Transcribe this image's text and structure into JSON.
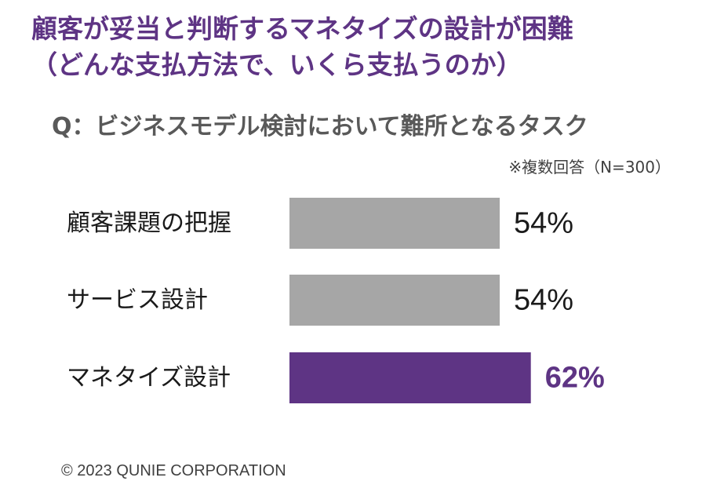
{
  "headline": {
    "line1": "顧客が妥当と判断するマネタイズの設計が困難",
    "line2": "（どんな支払方法で、いくら支払うのか）"
  },
  "question": "Q：ビジネスモデル検討において難所となるタスク",
  "note": "※複数回答（N=300）",
  "footer": "© 2023 QUNIE CORPORATION",
  "colors": {
    "accent": "#5e3484",
    "bar_default": "#a6a6a6",
    "bar_highlight": "#5e3484",
    "text_dark": "#1a1a1a",
    "text_gray": "#595959"
  },
  "chart_data": {
    "type": "bar",
    "orientation": "horizontal",
    "categories": [
      "顧客課題の把握",
      "サービス設計",
      "マネタイズ設計"
    ],
    "values": [
      54,
      54,
      62
    ],
    "value_labels": [
      "54%",
      "54%",
      "62%"
    ],
    "highlight_index": 2,
    "unit": "%",
    "xlim": [
      0,
      100
    ],
    "grid": false,
    "legend": "none"
  }
}
